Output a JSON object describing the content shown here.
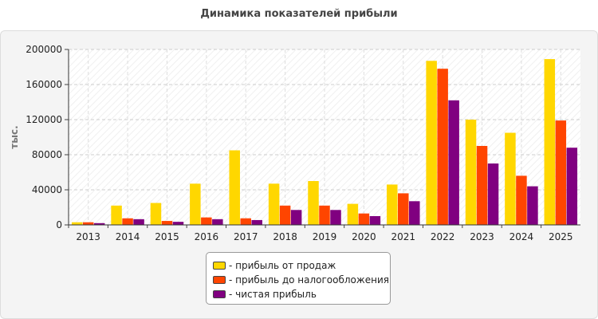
{
  "chart_data": {
    "type": "bar",
    "title": "Динамика показателей прибыли",
    "ylabel": "тыс.",
    "xlabel": "",
    "ylim": [
      0,
      200000
    ],
    "yticks": [
      0,
      40000,
      80000,
      120000,
      160000,
      200000
    ],
    "categories": [
      "2013",
      "2014",
      "2015",
      "2016",
      "2017",
      "2018",
      "2019",
      "2020",
      "2021",
      "2022",
      "2023",
      "2024",
      "2025"
    ],
    "series": [
      {
        "name": "- прибыль от продаж",
        "color": "#ffd700",
        "values": [
          3000,
          22000,
          25000,
          47000,
          85000,
          47000,
          50000,
          24000,
          46000,
          187000,
          120000,
          105000,
          189000
        ]
      },
      {
        "name": "- прибыль до налогообложения",
        "color": "#ff4500",
        "values": [
          3000,
          7500,
          4500,
          8500,
          7500,
          22000,
          22000,
          13000,
          36000,
          178000,
          90000,
          56000,
          119000
        ]
      },
      {
        "name": "- чистая прибыль",
        "color": "#800080",
        "values": [
          2000,
          6500,
          3500,
          6500,
          5500,
          17000,
          17000,
          10000,
          27000,
          142000,
          70000,
          44000,
          88000
        ]
      }
    ],
    "grid": true,
    "legend_position": "bottom"
  }
}
